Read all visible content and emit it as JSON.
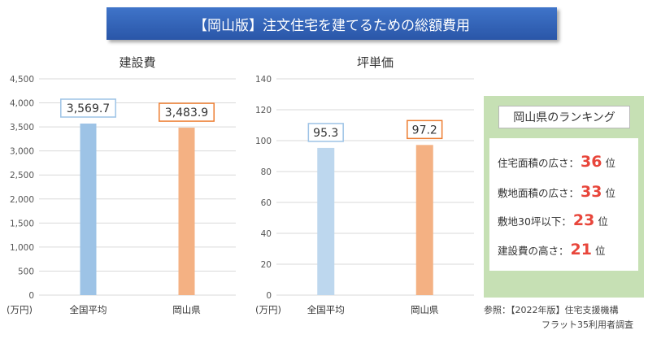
{
  "banner": {
    "title": "【岡山版】注文住宅を建てるための総額費用"
  },
  "chart_data": [
    {
      "type": "bar",
      "title": "建設費",
      "unit_label": "(万円)",
      "categories": [
        "全国平均",
        "岡山県"
      ],
      "values": [
        3569.7,
        3483.9
      ],
      "value_labels": [
        "3,569.7",
        "3,483.9"
      ],
      "ylim": [
        0,
        4500
      ],
      "yticks": [
        0,
        500,
        1000,
        1500,
        2000,
        2500,
        3000,
        3500,
        4000,
        4500
      ],
      "ytick_labels": [
        "0",
        "500",
        "1,000",
        "1,500",
        "2,000",
        "2,500",
        "3,000",
        "3,500",
        "4,000",
        "4,500"
      ],
      "bar_colors": [
        "#9dc3e6",
        "#f4b183"
      ],
      "label_border_colors": [
        "#9dc3e6",
        "#ed7d31"
      ],
      "grid": true
    },
    {
      "type": "bar",
      "title": "坪単価",
      "unit_label": "(万円)",
      "categories": [
        "全国平均",
        "岡山県"
      ],
      "values": [
        95.3,
        97.2
      ],
      "value_labels": [
        "95.3",
        "97.2"
      ],
      "ylim": [
        0,
        140
      ],
      "yticks": [
        0,
        20,
        40,
        60,
        80,
        100,
        120,
        140
      ],
      "ytick_labels": [
        "0",
        "20",
        "40",
        "60",
        "80",
        "100",
        "120",
        "140"
      ],
      "bar_colors": [
        "#bdd7ee",
        "#f4b183"
      ],
      "label_border_colors": [
        "#9dc3e6",
        "#ed7d31"
      ],
      "grid": true
    }
  ],
  "ranking": {
    "title": "岡山県のランキング",
    "items": [
      {
        "label": "住宅面積の広さ：",
        "rank": "36",
        "suffix": "位"
      },
      {
        "label": "敷地面積の広さ：",
        "rank": "33",
        "suffix": "位"
      },
      {
        "label": "敷地30坪以下：",
        "rank": "23",
        "suffix": "位"
      },
      {
        "label": "建設費の高さ：",
        "rank": "21",
        "suffix": "位"
      }
    ]
  },
  "source": {
    "line1": "参照：【2022年版】住宅支援機構",
    "line2": "フラット35利用者調査"
  },
  "colors": {
    "banner": "#2f5fb3",
    "rank_panel": "#c6e0b4",
    "rank_number": "#e8463b"
  }
}
